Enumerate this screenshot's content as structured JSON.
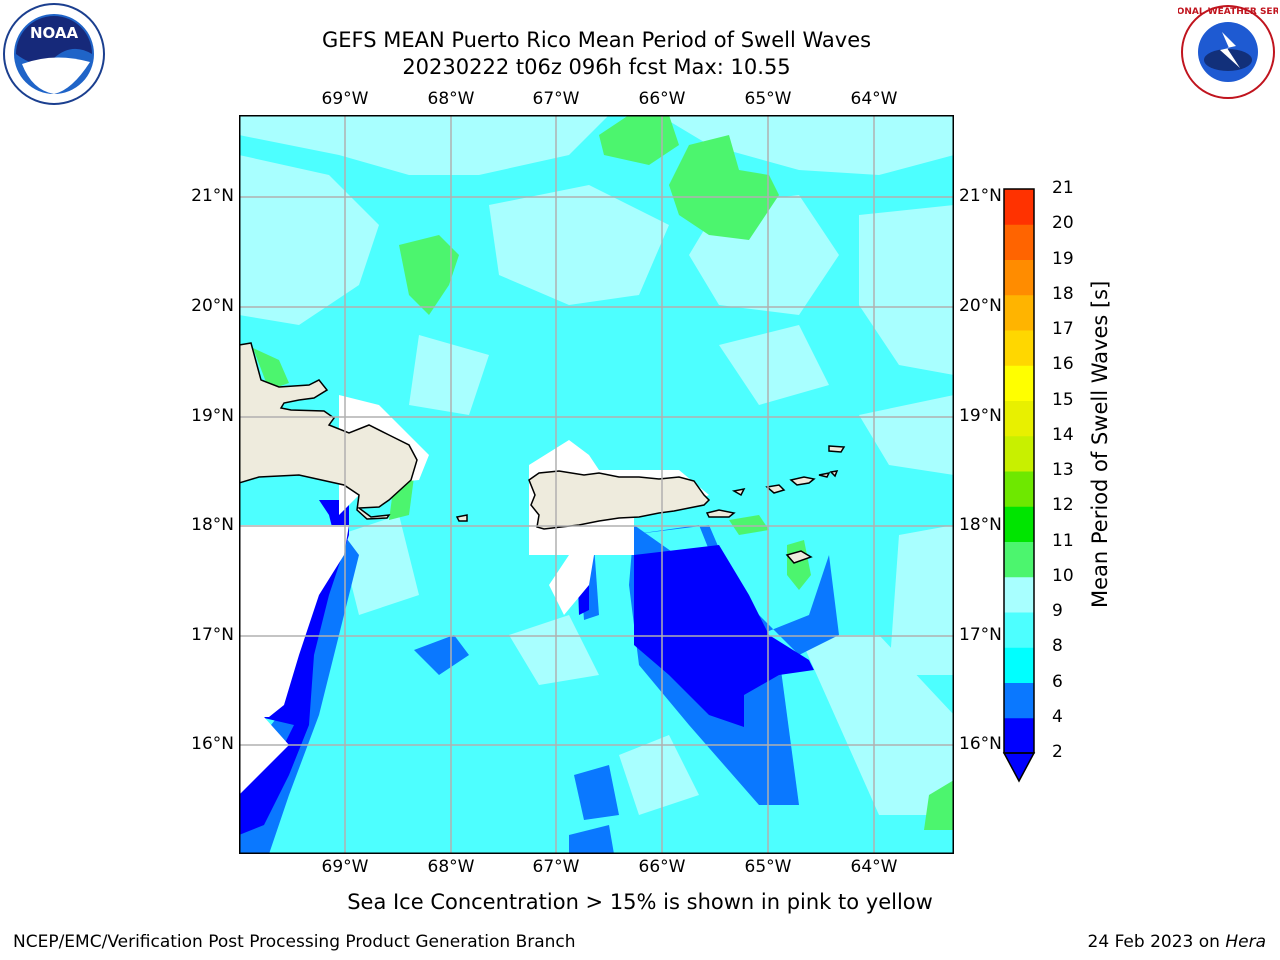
{
  "title_line1": "GEFS MEAN Puerto Rico Mean Period of Swell Waves",
  "title_line2": "20230222 t06z 096h fcst   Max: 10.55",
  "logos": {
    "left": "noaa-logo",
    "right": "national-weather-service-logo"
  },
  "map": {
    "lon_ticks": [
      "69°W",
      "68°W",
      "67°W",
      "66°W",
      "65°W",
      "64°W"
    ],
    "lat_ticks": [
      "21°N",
      "20°N",
      "19°N",
      "18°N",
      "17°N",
      "16°N"
    ],
    "land_color": "#eeebdd",
    "ocean_base_color": "#4dffff"
  },
  "colorbar": {
    "label": "Mean Period of Swell Waves [s]",
    "ticks": [
      "2",
      "4",
      "6",
      "8",
      "9",
      "10",
      "11",
      "12",
      "13",
      "14",
      "15",
      "16",
      "17",
      "18",
      "19",
      "20",
      "21"
    ],
    "colors": [
      "#0000ff",
      "#0a78ff",
      "#00ffff",
      "#4dffff",
      "#a8ffff",
      "#4cf56e",
      "#00e500",
      "#6ee800",
      "#c8f000",
      "#e8f000",
      "#ffff00",
      "#ffd700",
      "#ffb400",
      "#ff8c00",
      "#ff6400",
      "#ff3200",
      "#ff0000"
    ]
  },
  "caption": "Sea Ice Concentration > 15% is shown in pink to yellow",
  "footer_left": "NCEP/EMC/Verification Post Processing Product Generation Branch",
  "footer_right_date": "24 Feb 2023 on ",
  "footer_right_host": "Hera"
}
